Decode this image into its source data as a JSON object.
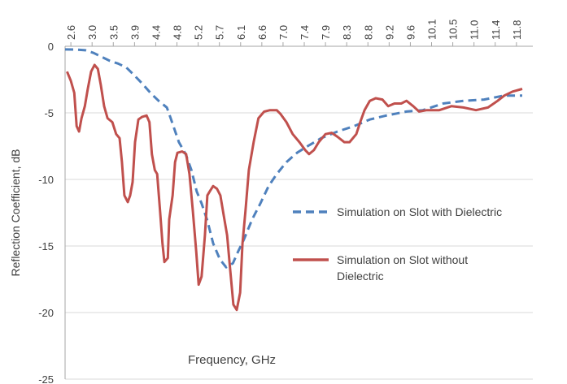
{
  "chart_data": {
    "type": "line",
    "x_label": "Frequency, GHz",
    "y_label": "Reflection Coefficient, dB",
    "xlim": [
      2.48,
      12.18
    ],
    "xticks": [
      {
        "value": 2.6,
        "label": "2.6"
      },
      {
        "value": 3.04,
        "label": "3.0"
      },
      {
        "value": 3.48,
        "label": "3.5"
      },
      {
        "value": 3.92,
        "label": "3.9"
      },
      {
        "value": 4.36,
        "label": "4.4"
      },
      {
        "value": 4.8,
        "label": "4.8"
      },
      {
        "value": 5.24,
        "label": "5.2"
      },
      {
        "value": 5.68,
        "label": "5.7"
      },
      {
        "value": 6.12,
        "label": "6.1"
      },
      {
        "value": 6.56,
        "label": "6.6"
      },
      {
        "value": 7.0,
        "label": "7.0"
      },
      {
        "value": 7.44,
        "label": "7.4"
      },
      {
        "value": 7.88,
        "label": "7.9"
      },
      {
        "value": 8.32,
        "label": "8.3"
      },
      {
        "value": 8.76,
        "label": "8.8"
      },
      {
        "value": 9.2,
        "label": "9.2"
      },
      {
        "value": 9.64,
        "label": "9.6"
      },
      {
        "value": 10.08,
        "label": "10.1"
      },
      {
        "value": 10.52,
        "label": "10.5"
      },
      {
        "value": 10.96,
        "label": "11.0"
      },
      {
        "value": 11.4,
        "label": "11.4"
      },
      {
        "value": 11.84,
        "label": "11.8"
      }
    ],
    "ylim": [
      -25,
      0
    ],
    "yticks": [
      0,
      -5,
      -10,
      -15,
      -20,
      -25
    ],
    "grid": true,
    "series": [
      {
        "name": "Simulation on Slot with Dielectric",
        "color": "#4f81bd",
        "dashed": true,
        "x": [
          2.48,
          2.73,
          2.9,
          3.07,
          3.24,
          3.41,
          3.58,
          3.75,
          3.92,
          4.08,
          4.25,
          4.42,
          4.59,
          4.67,
          4.84,
          4.98,
          5.1,
          5.21,
          5.31,
          5.43,
          5.55,
          5.69,
          5.82,
          5.96,
          6.07,
          6.19,
          6.36,
          6.53,
          6.7,
          6.87,
          7.07,
          7.29,
          7.51,
          7.79,
          8.13,
          8.47,
          8.8,
          9.14,
          9.56,
          9.9,
          10.32,
          10.74,
          11.17,
          11.59,
          11.96
        ],
        "values": [
          -0.24,
          -0.25,
          -0.3,
          -0.5,
          -0.8,
          -1.1,
          -1.3,
          -1.6,
          -2.2,
          -2.8,
          -3.5,
          -4.1,
          -4.6,
          -5.4,
          -7.2,
          -8.1,
          -9.3,
          -10.9,
          -11.8,
          -13.1,
          -14.8,
          -16.0,
          -16.6,
          -16.3,
          -15.4,
          -14.5,
          -13.0,
          -11.8,
          -10.5,
          -9.6,
          -8.7,
          -8.0,
          -7.5,
          -6.9,
          -6.4,
          -6.0,
          -5.5,
          -5.2,
          -4.9,
          -4.8,
          -4.3,
          -4.1,
          -4.0,
          -3.7,
          -3.7
        ]
      },
      {
        "name": "Simulation on Slot without Dielectric",
        "color": "#c0504d",
        "dashed": false,
        "x": [
          2.52,
          2.6,
          2.67,
          2.72,
          2.77,
          2.82,
          2.89,
          2.95,
          3.02,
          3.09,
          3.16,
          3.22,
          3.29,
          3.36,
          3.46,
          3.54,
          3.61,
          3.66,
          3.71,
          3.78,
          3.83,
          3.88,
          3.93,
          4.0,
          4.08,
          4.17,
          4.23,
          4.28,
          4.34,
          4.39,
          4.45,
          4.5,
          4.54,
          4.61,
          4.64,
          4.71,
          4.76,
          4.81,
          4.91,
          4.99,
          5.06,
          5.13,
          5.2,
          5.25,
          5.31,
          5.38,
          5.43,
          5.48,
          5.55,
          5.63,
          5.7,
          5.77,
          5.84,
          5.9,
          5.97,
          6.04,
          6.11,
          6.16,
          6.22,
          6.29,
          6.39,
          6.49,
          6.61,
          6.73,
          6.87,
          6.95,
          7.07,
          7.2,
          7.34,
          7.46,
          7.54,
          7.64,
          7.74,
          7.88,
          8.01,
          8.13,
          8.27,
          8.38,
          8.52,
          8.6,
          8.69,
          8.8,
          8.92,
          9.06,
          9.18,
          9.31,
          9.45,
          9.56,
          9.7,
          9.82,
          9.98,
          10.24,
          10.49,
          10.74,
          11.0,
          11.25,
          11.45,
          11.59,
          11.76,
          11.96
        ],
        "values": [
          -1.9,
          -2.6,
          -3.5,
          -6.0,
          -6.4,
          -5.4,
          -4.5,
          -3.2,
          -1.9,
          -1.4,
          -1.7,
          -2.9,
          -4.5,
          -5.4,
          -5.7,
          -6.6,
          -6.9,
          -8.7,
          -11.2,
          -11.7,
          -11.2,
          -10.2,
          -7.2,
          -5.5,
          -5.3,
          -5.2,
          -5.7,
          -8.1,
          -9.3,
          -9.6,
          -12.4,
          -14.8,
          -16.2,
          -15.9,
          -13.0,
          -11.2,
          -8.7,
          -8.0,
          -7.9,
          -8.1,
          -9.6,
          -12.4,
          -15.4,
          -17.9,
          -17.3,
          -14.2,
          -11.2,
          -10.9,
          -10.5,
          -10.7,
          -11.2,
          -12.7,
          -14.2,
          -16.6,
          -19.4,
          -19.8,
          -18.5,
          -14.8,
          -12.4,
          -9.3,
          -7.2,
          -5.4,
          -4.9,
          -4.8,
          -4.8,
          -5.1,
          -5.7,
          -6.6,
          -7.2,
          -7.8,
          -8.1,
          -7.8,
          -7.2,
          -6.6,
          -6.5,
          -6.8,
          -7.2,
          -7.2,
          -6.6,
          -5.7,
          -4.8,
          -4.1,
          -3.9,
          -4.0,
          -4.5,
          -4.3,
          -4.3,
          -4.1,
          -4.5,
          -4.9,
          -4.8,
          -4.8,
          -4.5,
          -4.6,
          -4.8,
          -4.6,
          -4.1,
          -3.7,
          -3.4,
          -3.2
        ]
      }
    ]
  }
}
